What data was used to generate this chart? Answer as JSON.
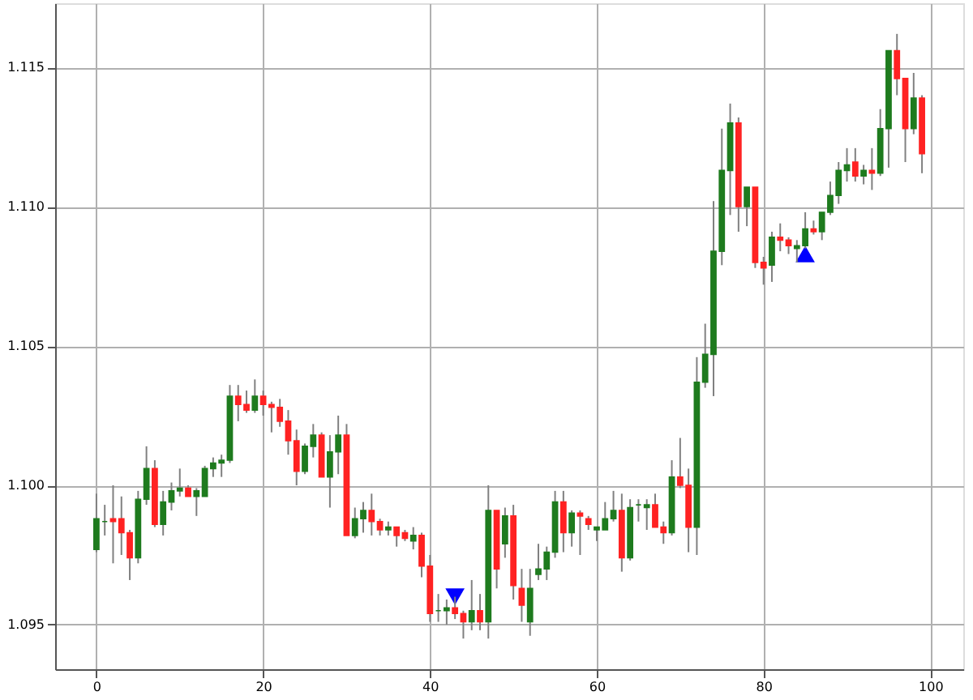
{
  "chart_data": {
    "type": "candlestick",
    "xlim": [
      -4.95,
      103.95
    ],
    "ylim": [
      1.0934,
      1.1173
    ],
    "xticks": [
      0,
      20,
      40,
      60,
      80,
      100
    ],
    "yticks": [
      1.095,
      {
        "value": 1.1,
        "label": "1.100"
      },
      1.105,
      {
        "value": 1.11,
        "label": "1.110"
      },
      1.115
    ],
    "grid": true,
    "series": [
      {
        "color": "#1e7b1e",
        "x": [
          0,
          1,
          5,
          6,
          8,
          9,
          10,
          12,
          13,
          14,
          15,
          16,
          19,
          25,
          26,
          28,
          29,
          31,
          32,
          35,
          38,
          41,
          42,
          45,
          47,
          49,
          52,
          53,
          54,
          55,
          57,
          60,
          61,
          62,
          64,
          65,
          66,
          69,
          72,
          73,
          74,
          75,
          76,
          78,
          81,
          84,
          85,
          87,
          88,
          89,
          90,
          92,
          94,
          95,
          98
        ],
        "ohlc": [
          [
            1.0977,
            1.0997,
            1.0976,
            1.0988
          ],
          [
            1.0987,
            1.0993,
            1.0982,
            1.0987
          ],
          [
            1.0974,
            1.0998,
            1.0972,
            1.0995
          ],
          [
            1.0995,
            1.1014,
            1.0993,
            1.1006
          ],
          [
            1.0986,
            1.0998,
            1.0982,
            1.0994
          ],
          [
            1.0994,
            1.1001,
            1.0991,
            1.0998
          ],
          [
            1.0998,
            1.1006,
            1.0996,
            1.0999
          ],
          [
            1.0996,
            1.0999,
            1.0989,
            1.0998
          ],
          [
            1.0996,
            1.1007,
            1.0996,
            1.1006
          ],
          [
            1.1006,
            1.101,
            1.1003,
            1.1008
          ],
          [
            1.1008,
            1.1011,
            1.1003,
            1.1009
          ],
          [
            1.1009,
            1.1036,
            1.1008,
            1.1032
          ],
          [
            1.1027,
            1.1038,
            1.1026,
            1.1032
          ],
          [
            1.1005,
            1.1015,
            1.1004,
            1.1014
          ],
          [
            1.1014,
            1.1022,
            1.101,
            1.1018
          ],
          [
            1.1003,
            1.1018,
            1.0992,
            1.1012
          ],
          [
            1.1012,
            1.1025,
            1.1004,
            1.1018
          ],
          [
            1.0982,
            1.0992,
            1.0981,
            1.0988
          ],
          [
            1.0988,
            1.0994,
            1.0983,
            1.0991
          ],
          [
            1.0984,
            1.0987,
            1.0982,
            1.0985
          ],
          [
            1.098,
            1.0985,
            1.0977,
            1.0982
          ],
          [
            1.0955,
            1.0961,
            1.0951,
            1.0955
          ],
          [
            1.0955,
            1.0959,
            1.095,
            1.0956
          ],
          [
            1.0951,
            1.0966,
            1.0948,
            1.0955
          ],
          [
            1.0951,
            1.1,
            1.0945,
            1.0991
          ],
          [
            1.0979,
            1.0992,
            1.0974,
            1.0989
          ],
          [
            1.0951,
            1.097,
            1.0946,
            1.0963
          ],
          [
            1.0968,
            1.0979,
            1.0966,
            1.097
          ],
          [
            1.097,
            1.0978,
            1.0966,
            1.0976
          ],
          [
            1.0976,
            1.0998,
            1.0974,
            1.0994
          ],
          [
            1.0983,
            1.0991,
            1.0978,
            1.099
          ],
          [
            1.0984,
            1.0985,
            1.098,
            1.0985
          ],
          [
            1.0984,
            1.0994,
            1.0984,
            1.0988
          ],
          [
            1.0988,
            1.0998,
            1.0987,
            1.0991
          ],
          [
            1.0974,
            1.0995,
            1.0973,
            1.0992
          ],
          [
            1.0993,
            1.0995,
            1.0987,
            1.0993
          ],
          [
            1.0992,
            1.0995,
            1.0984,
            1.0993
          ],
          [
            1.0983,
            1.1009,
            1.0982,
            1.1003
          ],
          [
            1.0985,
            1.1046,
            1.0975,
            1.1037
          ],
          [
            1.1037,
            1.1058,
            1.1035,
            1.1047
          ],
          [
            1.1047,
            1.1102,
            1.1032,
            1.1084
          ],
          [
            1.1084,
            1.1128,
            1.1079,
            1.1113
          ],
          [
            1.1113,
            1.1137,
            1.1097,
            1.113
          ],
          [
            1.11,
            1.1107,
            1.1093,
            1.1107
          ],
          [
            1.1079,
            1.1091,
            1.1073,
            1.1089
          ],
          [
            1.1085,
            1.1088,
            1.108,
            1.1086
          ],
          [
            1.1086,
            1.1098,
            1.1085,
            1.1092
          ],
          [
            1.1091,
            1.1098,
            1.1088,
            1.1098
          ],
          [
            1.1098,
            1.1109,
            1.1097,
            1.1104
          ],
          [
            1.1104,
            1.1116,
            1.1101,
            1.1113
          ],
          [
            1.1113,
            1.1121,
            1.1109,
            1.1115
          ],
          [
            1.1111,
            1.1115,
            1.1108,
            1.1113
          ],
          [
            1.1112,
            1.1135,
            1.1111,
            1.1128
          ],
          [
            1.1128,
            1.1156,
            1.1114,
            1.1156
          ],
          [
            1.1128,
            1.1148,
            1.1126,
            1.1139
          ]
        ]
      },
      {
        "color": "#ff2222",
        "x": [
          2,
          3,
          4,
          7,
          11,
          17,
          18,
          20,
          21,
          22,
          23,
          24,
          27,
          30,
          33,
          34,
          36,
          37,
          39,
          40,
          43,
          44,
          46,
          48,
          50,
          51,
          56,
          58,
          59,
          63,
          67,
          68,
          70,
          71,
          77,
          79,
          80,
          82,
          83,
          86,
          91,
          93,
          96,
          97,
          99
        ],
        "ohlc": [
          [
            1.0988,
            1.1,
            1.0972,
            1.0987
          ],
          [
            1.0988,
            1.0996,
            1.0975,
            1.0983
          ],
          [
            1.0983,
            1.0984,
            1.0966,
            1.0974
          ],
          [
            1.1006,
            1.1009,
            1.0985,
            1.0986
          ],
          [
            1.0999,
            1.1,
            1.0996,
            1.0996
          ],
          [
            1.1032,
            1.1036,
            1.1023,
            1.1029
          ],
          [
            1.1029,
            1.1034,
            1.1026,
            1.1027
          ],
          [
            1.1032,
            1.1034,
            1.1025,
            1.1029
          ],
          [
            1.1029,
            1.103,
            1.1019,
            1.1028
          ],
          [
            1.1028,
            1.1031,
            1.1021,
            1.1023
          ],
          [
            1.1023,
            1.1027,
            1.1011,
            1.1016
          ],
          [
            1.1016,
            1.102,
            1.1,
            1.1005
          ],
          [
            1.1018,
            1.1019,
            1.1003,
            1.1003
          ],
          [
            1.1018,
            1.1022,
            1.0982,
            1.0982
          ],
          [
            1.0991,
            1.0997,
            1.0982,
            1.0987
          ],
          [
            1.0987,
            1.0988,
            1.0982,
            1.0984
          ],
          [
            1.0985,
            1.0985,
            1.0978,
            1.0982
          ],
          [
            1.0983,
            1.0984,
            1.098,
            1.0981
          ],
          [
            1.0982,
            1.0983,
            1.0967,
            1.0971
          ],
          [
            1.0971,
            1.0975,
            1.0951,
            1.0954
          ],
          [
            1.0956,
            1.096,
            1.0952,
            1.0954
          ],
          [
            1.0954,
            1.0955,
            1.0945,
            1.0951
          ],
          [
            1.0955,
            1.0961,
            1.0948,
            1.0951
          ],
          [
            1.0991,
            1.0991,
            1.0963,
            1.097
          ],
          [
            1.0989,
            1.0993,
            1.0959,
            1.0964
          ],
          [
            1.0963,
            1.097,
            1.0951,
            1.0957
          ],
          [
            1.0994,
            1.0998,
            1.0976,
            1.0983
          ],
          [
            1.099,
            1.0991,
            1.0975,
            1.0989
          ],
          [
            1.0988,
            1.0989,
            1.0984,
            1.0986
          ],
          [
            1.0991,
            1.0997,
            1.0969,
            1.0974
          ],
          [
            1.0993,
            1.0997,
            1.0985,
            1.0985
          ],
          [
            1.0985,
            1.0987,
            1.0979,
            1.0983
          ],
          [
            1.1003,
            1.1017,
            1.0999,
            1.1
          ],
          [
            1.1,
            1.1006,
            1.0976,
            1.0985
          ],
          [
            1.113,
            1.1132,
            1.1091,
            1.11
          ],
          [
            1.1107,
            1.1107,
            1.1078,
            1.108
          ],
          [
            1.108,
            1.1082,
            1.1072,
            1.1078
          ],
          [
            1.1089,
            1.1094,
            1.1084,
            1.1088
          ],
          [
            1.1088,
            1.1089,
            1.1083,
            1.1086
          ],
          [
            1.1092,
            1.1095,
            1.109,
            1.1091
          ],
          [
            1.1116,
            1.1121,
            1.1109,
            1.1111
          ],
          [
            1.1113,
            1.1121,
            1.1106,
            1.1112
          ],
          [
            1.1156,
            1.1162,
            1.114,
            1.1146
          ],
          [
            1.1146,
            1.1146,
            1.1116,
            1.1128
          ],
          [
            1.1139,
            1.114,
            1.1112,
            1.1119
          ]
        ]
      },
      {
        "type": "scatter",
        "color": "#0000ff",
        "marker": "triangle_down",
        "x": [
          43
        ],
        "values": [
          1.096
        ]
      },
      {
        "type": "scatter",
        "color": "#0000ff",
        "marker": "triangle",
        "x": [
          85
        ],
        "values": [
          1.1083
        ]
      }
    ]
  }
}
